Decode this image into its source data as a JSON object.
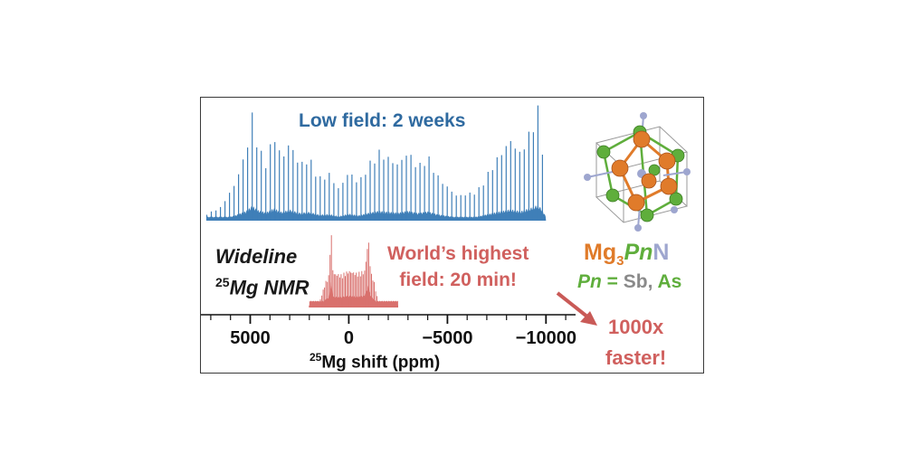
{
  "chart_data": {
    "type": "line",
    "xlabel_sup": "25",
    "xlabel_main": "Mg shift (ppm)",
    "xlim": [
      7500,
      -11500
    ],
    "x_ticks": [
      5000,
      0,
      -5000,
      -10000
    ],
    "x_tick_labels": [
      "5000",
      "0",
      "−5000",
      "−10000"
    ],
    "minor_tick_step": 1000,
    "series": [
      {
        "label": "Low field:  2 weeks",
        "color": "#3f7fb8",
        "x_range": [
          7200,
          -10000
        ],
        "spikelet_spacing": 230,
        "envelope": [
          [
            7200,
            0.06
          ],
          [
            6500,
            0.12
          ],
          [
            5800,
            0.32
          ],
          [
            5200,
            0.62
          ],
          [
            4900,
            0.94
          ],
          [
            4600,
            0.66
          ],
          [
            4200,
            0.52
          ],
          [
            3800,
            0.78
          ],
          [
            3400,
            0.55
          ],
          [
            3000,
            0.7
          ],
          [
            2500,
            0.5
          ],
          [
            2000,
            0.56
          ],
          [
            1500,
            0.38
          ],
          [
            1000,
            0.42
          ],
          [
            500,
            0.28
          ],
          [
            0,
            0.44
          ],
          [
            -500,
            0.34
          ],
          [
            -1000,
            0.5
          ],
          [
            -1500,
            0.62
          ],
          [
            -2000,
            0.56
          ],
          [
            -2500,
            0.5
          ],
          [
            -3000,
            0.62
          ],
          [
            -3500,
            0.48
          ],
          [
            -4000,
            0.58
          ],
          [
            -4500,
            0.4
          ],
          [
            -5000,
            0.3
          ],
          [
            -5500,
            0.22
          ],
          [
            -6500,
            0.26
          ],
          [
            -7500,
            0.55
          ],
          [
            -8200,
            0.72
          ],
          [
            -8700,
            0.6
          ],
          [
            -9200,
            0.8
          ],
          [
            -9600,
            1.0
          ],
          [
            -9800,
            0.7
          ],
          [
            -10000,
            0.25
          ]
        ]
      },
      {
        "label": "World’s highest field:  20 min!",
        "color": "#d9706d",
        "x_range": [
          2000,
          -2500
        ],
        "spikelet_spacing": 70,
        "envelope": [
          [
            2000,
            0.03
          ],
          [
            1500,
            0.05
          ],
          [
            1200,
            0.3
          ],
          [
            1000,
            0.4
          ],
          [
            900,
            1.0
          ],
          [
            800,
            0.42
          ],
          [
            400,
            0.4
          ],
          [
            0,
            0.45
          ],
          [
            -400,
            0.42
          ],
          [
            -800,
            0.45
          ],
          [
            -1000,
            0.85
          ],
          [
            -1100,
            0.45
          ],
          [
            -1300,
            0.3
          ],
          [
            -1500,
            0.05
          ],
          [
            -2500,
            0.03
          ]
        ]
      }
    ]
  },
  "labels": {
    "low_field": "Low field:  2 weeks",
    "wideline_line1": "Wideline",
    "wideline_sup": "25",
    "wideline_line2": "Mg NMR",
    "highest_line1": "World’s highest",
    "highest_line2": "field:  20 min!",
    "formula_mg": "Mg",
    "formula_sub": "3",
    "formula_pn": "Pn",
    "formula_n": "N",
    "pn_label": "Pn",
    "pn_eq": " = ",
    "pn_sb": "Sb",
    "pn_comma": ", ",
    "pn_as": "As",
    "faster_line1": "1000x",
    "faster_line2": "faster!"
  },
  "colors": {
    "mg_atom": "#e07b2a",
    "pn_atom": "#5fae3c",
    "n_atom": "#9ea6cf",
    "arrow": "#c95a57"
  },
  "icons": {
    "structure": "crystal-structure-icon"
  }
}
